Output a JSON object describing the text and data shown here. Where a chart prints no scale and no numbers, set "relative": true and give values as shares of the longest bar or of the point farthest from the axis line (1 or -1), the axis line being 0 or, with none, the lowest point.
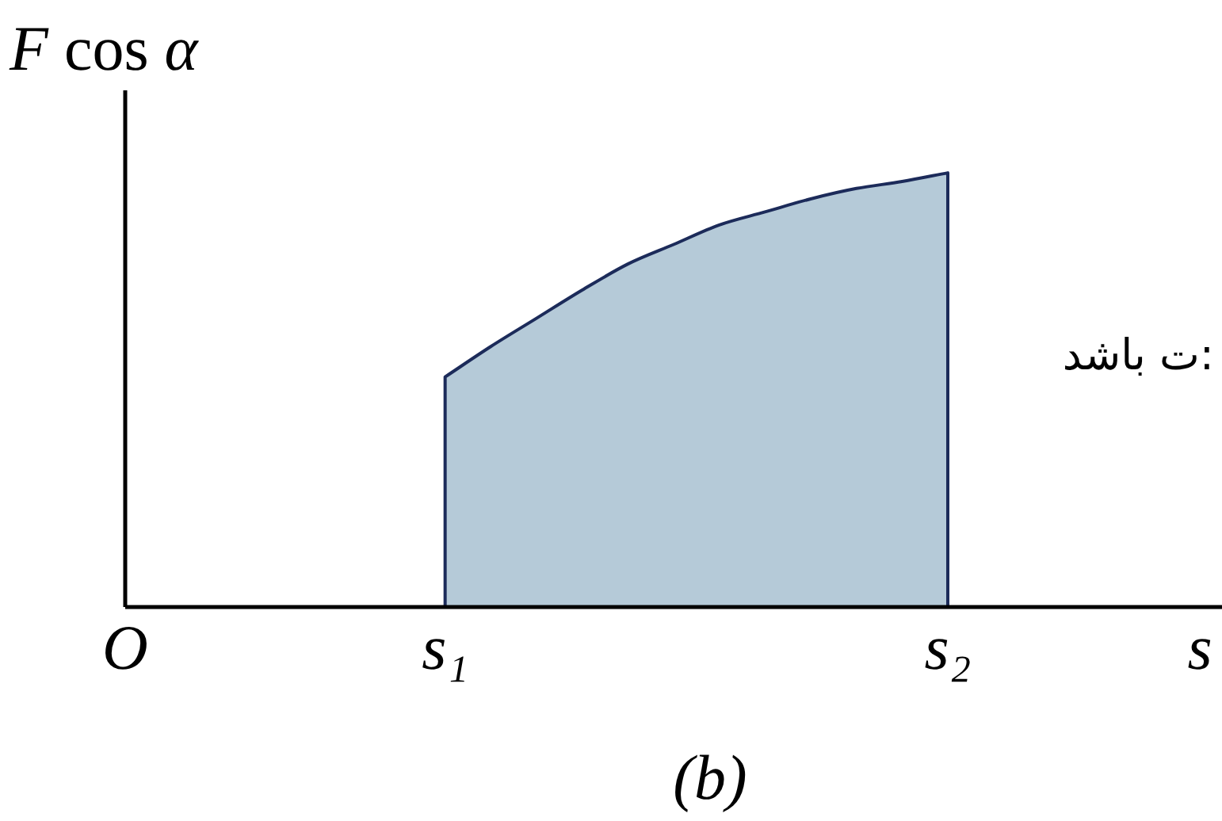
{
  "chart_data": {
    "type": "area",
    "relative": true,
    "ylabel": "F cos α",
    "xlabel": "s",
    "categories": [
      "O",
      null,
      null,
      null,
      null,
      null,
      null,
      "s₁",
      null,
      null,
      null,
      null,
      null,
      null,
      null,
      null,
      null,
      null,
      "s₂",
      null,
      null,
      null,
      null,
      null,
      null
    ],
    "values": [
      null,
      null,
      null,
      null,
      null,
      null,
      null,
      0.53,
      0.6,
      0.665,
      0.73,
      0.79,
      0.835,
      0.88,
      0.91,
      0.94,
      0.964,
      0.98,
      1,
      null,
      null,
      null,
      null,
      null,
      null
    ],
    "color": "#b5cad8",
    "annotations": [
      "(b)",
      "ت باشد:"
    ]
  }
}
